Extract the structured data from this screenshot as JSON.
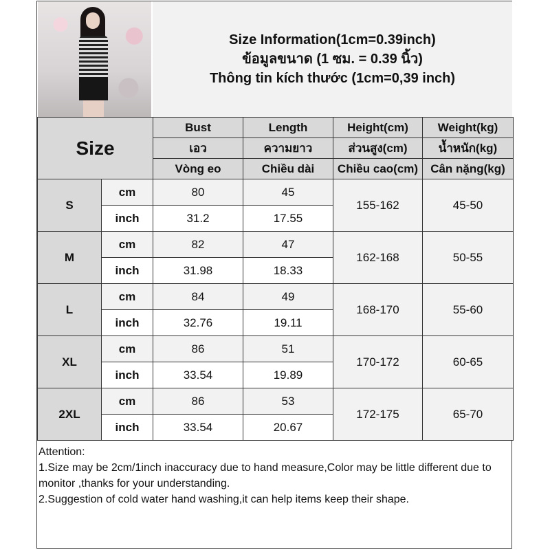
{
  "title_lines": [
    "Size Information(1cm=0.39inch)",
    "ข้อมูลขนาด (1 ซม. = 0.39 นิ้ว)",
    "Thông tin kích thước (1cm=0,39 inch)"
  ],
  "table": {
    "size_header": "Size",
    "columns": [
      {
        "en": "Bust",
        "th": "เอว",
        "vi": "Vòng eo"
      },
      {
        "en": "Length",
        "th": "ความยาว",
        "vi": "Chiều dài"
      },
      {
        "en": "Height(cm)",
        "th": "ส่วนสูง(cm)",
        "vi": "Chiều cao(cm)"
      },
      {
        "en": "Weight(kg)",
        "th": "น้ำหนัก(kg)",
        "vi": "Cân nặng(kg)"
      }
    ],
    "unit_cm": "cm",
    "unit_inch": "inch",
    "rows": [
      {
        "size": "S",
        "bust_cm": "80",
        "length_cm": "45",
        "bust_inch": "31.2",
        "length_inch": "17.55",
        "height": "155-162",
        "weight": "45-50"
      },
      {
        "size": "M",
        "bust_cm": "82",
        "length_cm": "47",
        "bust_inch": "31.98",
        "length_inch": "18.33",
        "height": "162-168",
        "weight": "50-55"
      },
      {
        "size": "L",
        "bust_cm": "84",
        "length_cm": "49",
        "bust_inch": "32.76",
        "length_inch": "19.11",
        "height": "168-170",
        "weight": "55-60"
      },
      {
        "size": "XL",
        "bust_cm": "86",
        "length_cm": "51",
        "bust_inch": "33.54",
        "length_inch": "19.89",
        "height": "170-172",
        "weight": "60-65"
      },
      {
        "size": "2XL",
        "bust_cm": "86",
        "length_cm": "53",
        "bust_inch": "33.54",
        "length_inch": "20.67",
        "height": "172-175",
        "weight": "65-70"
      }
    ]
  },
  "notes": [
    "Attention:",
    "1.Size may be 2cm/1inch inaccuracy due to hand measure,Color may be little different due to monitor ,thanks for your understanding.",
    "2.Suggestion of cold water hand washing,it can help items keep their shape."
  ]
}
